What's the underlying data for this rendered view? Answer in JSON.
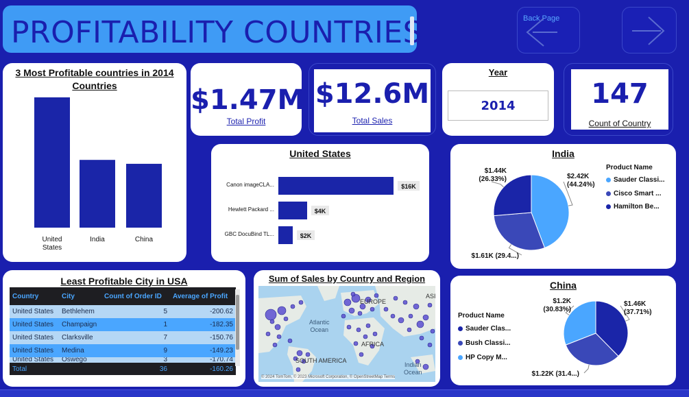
{
  "header": {
    "title": "PROFITABILITY COUNTRIES",
    "back_label": "Back Page"
  },
  "kpis": {
    "total_profit": {
      "value": "$1.47M",
      "label": "Total Profit"
    },
    "total_sales": {
      "value": "$12.6M",
      "label": "Total Sales"
    },
    "year": {
      "label": "Year",
      "value": "2014"
    },
    "count_country": {
      "value": "147",
      "label": "Count of Country"
    }
  },
  "top_countries": {
    "title": "3 Most Profitable countries in 2014",
    "subtitle": "Countries",
    "color": "#1a25a8"
  },
  "us_products": {
    "title": "United States",
    "color": "#1a25a8"
  },
  "india": {
    "title": "India",
    "legend_title": "Product Name",
    "legend": [
      "Sauder Classi...",
      "Cisco Smart ...",
      "Hamilton Be..."
    ],
    "labels": [
      "$2.42K\n(44.24%)",
      "$1.61K (29.4...)",
      "$1.44K\n(26.33%)"
    ]
  },
  "china": {
    "title": "China",
    "legend_title": "Product Name",
    "legend": [
      "Sauder Clas...",
      "Bush Classi...",
      "HP Copy M..."
    ],
    "labels": [
      "$1.46K\n(37.71%)",
      "$1.22K (31.4...)",
      "$1.2K\n(30.83%)"
    ]
  },
  "least_city": {
    "title": "Least Profitable City in USA",
    "columns": [
      "Country",
      "City",
      "Count of Order ID",
      "Average of Profit"
    ],
    "rows": [
      [
        "United States",
        "Bethlehem",
        "5",
        "-200.62"
      ],
      [
        "United States",
        "Champaign",
        "1",
        "-182.35"
      ],
      [
        "United States",
        "Clarksville",
        "7",
        "-150.76"
      ],
      [
        "United States",
        "Medina",
        "9",
        "-149.23"
      ],
      [
        "United States",
        "Oswego",
        "3",
        "-170.74"
      ]
    ],
    "total": [
      "Total",
      "",
      "36",
      "-160.26"
    ]
  },
  "sales_map": {
    "title": "Sum of Sales by Country and Region",
    "labels": {
      "europe": "EUROPE",
      "asia": "ASIA",
      "atlantic": "Atlantic\nOcean",
      "africa": "AFRICA",
      "south_america": "SOUTH AMERICA",
      "indian": "Indian\nOcean"
    },
    "attribution": "© 2024 TomTom, © 2023 Microsoft Corporation, © OpenStreetMap Terms"
  },
  "chart_data": [
    {
      "type": "bar",
      "title": "3 Most Profitable countries in 2014",
      "xlabel": "Countries",
      "categories": [
        "United States",
        "India",
        "China"
      ],
      "values": [
        100,
        52,
        49
      ]
    },
    {
      "type": "bar",
      "orientation": "horizontal",
      "title": "United States",
      "categories": [
        "Canon imageCLA...",
        "Hewlett Packard ...",
        "GBC DocuBind TL..."
      ],
      "values": [
        16,
        4,
        2
      ],
      "value_labels": [
        "$16K",
        "$4K",
        "$2K"
      ]
    },
    {
      "type": "pie",
      "title": "India",
      "categories": [
        "Sauder Classi...",
        "Cisco Smart ...",
        "Hamilton Be..."
      ],
      "values": [
        2.42,
        1.61,
        1.44
      ],
      "percents": [
        44.24,
        29.4,
        26.33
      ],
      "colors": [
        "#4aa6ff",
        "#3a48b8",
        "#1a25a8"
      ]
    },
    {
      "type": "pie",
      "title": "China",
      "categories": [
        "Sauder Clas...",
        "Bush Classi...",
        "HP Copy M..."
      ],
      "values": [
        1.46,
        1.22,
        1.2
      ],
      "percents": [
        37.71,
        31.4,
        30.83
      ],
      "colors": [
        "#1a25a8",
        "#3a48b8",
        "#4aa6ff"
      ]
    }
  ]
}
